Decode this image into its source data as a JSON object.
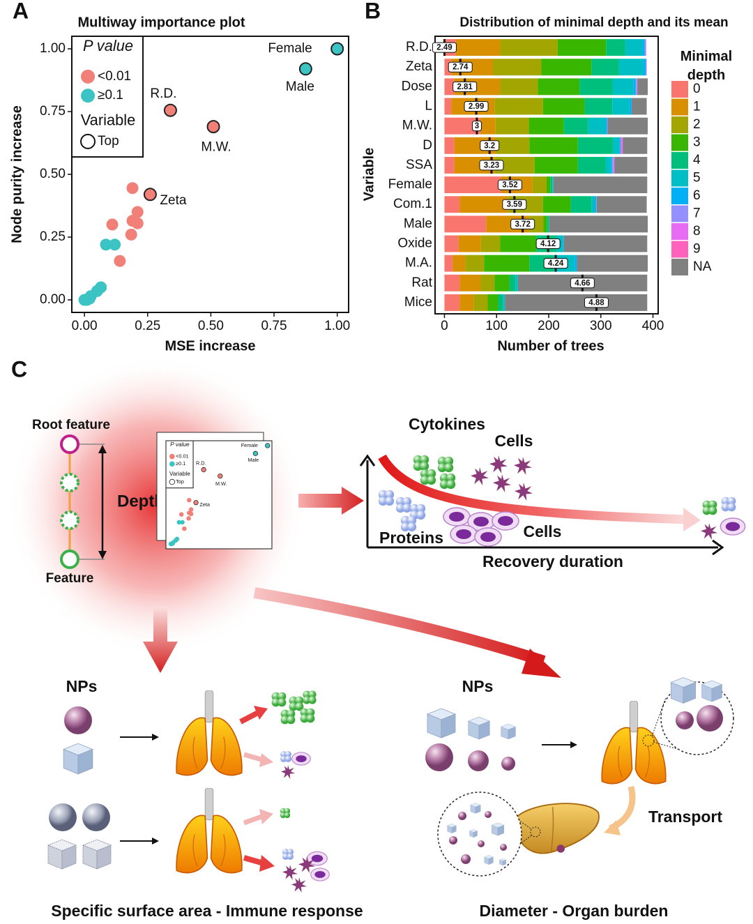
{
  "panel_labels": [
    "A",
    "B",
    "C"
  ],
  "chart_data": [
    {
      "type": "scatter",
      "title": "Multiway importance plot",
      "xlabel": "MSE increase",
      "ylabel": "Node purity increase",
      "xlim": [
        -0.05,
        1.045
      ],
      "ylim": [
        -0.05,
        1.05
      ],
      "xticks": [
        {
          "value": 0,
          "label": "0.00"
        },
        {
          "value": 0.25,
          "label": "0.25"
        },
        {
          "value": 0.5,
          "label": "0.50"
        },
        {
          "value": 0.75,
          "label": "0.75"
        },
        {
          "value": 1,
          "label": "1.00"
        }
      ],
      "yticks": [
        {
          "value": 0,
          "label": "0.00"
        },
        {
          "value": 0.25,
          "label": "0.25"
        },
        {
          "value": 0.5,
          "label": "0.50"
        },
        {
          "value": 0.75,
          "label": "0.75"
        },
        {
          "value": 1,
          "label": "1.00"
        }
      ],
      "legend_title": "P value",
      "legend_position": "upper left",
      "size_legend": {
        "title": "Variable",
        "label": "Top"
      },
      "series": [
        {
          "name": "<0.01",
          "color": "#f08078",
          "x": [
            0.34,
            0.51,
            0.26,
            0.19,
            0.11,
            0.19,
            0.21,
            0.21,
            0.185,
            0.14
          ],
          "values": [
            0.755,
            0.69,
            0.42,
            0.445,
            0.3,
            0.315,
            0.35,
            0.305,
            0.26,
            0.155
          ],
          "labels": [
            "R.D.",
            "M.W.",
            "Zeta",
            null,
            null,
            null,
            null,
            null,
            null,
            null
          ]
        },
        {
          "name": "≥0.1",
          "color": "#3cc4c4",
          "x": [
            1.0,
            0.875,
            0.01,
            0.025,
            0.05,
            0.065,
            0.085,
            0.12,
            0.0,
            0.02
          ],
          "values": [
            1.0,
            0.92,
            0.0,
            0.015,
            0.035,
            0.05,
            0.22,
            0.22,
            0.0,
            0.005
          ],
          "labels": [
            "Female",
            "Male",
            null,
            null,
            null,
            null,
            null,
            null,
            null,
            null
          ]
        }
      ]
    },
    {
      "type": "stacked_bar",
      "orientation": "horizontal",
      "title": "Distribution of minimal depth and its mean",
      "xlabel": "Number of trees",
      "ylabel": "Variable",
      "legend_title": "Minimal depth",
      "legend_position": "right",
      "categories": [
        "R.D.",
        "Zeta",
        "Dose",
        "L",
        "M.W.",
        "D",
        "SSA",
        "Female",
        "Com.1",
        "Male",
        "Oxide",
        "M.A.",
        "Rat",
        "Mice"
      ],
      "xlim": [
        -18,
        410
      ],
      "xticks": [
        0,
        100,
        200,
        300,
        400
      ],
      "means": [
        2.49,
        2.74,
        2.81,
        2.99,
        3,
        3.2,
        3.23,
        3.52,
        3.59,
        3.72,
        4.12,
        4.24,
        4.66,
        4.88
      ],
      "series": [
        {
          "name": "0",
          "color": "#f8766d",
          "values": [
            22,
            13,
            19,
            13,
            69,
            19,
            19,
            109,
            29,
            80,
            27,
            16,
            29,
            29
          ]
        },
        {
          "name": "1",
          "color": "#d89000",
          "values": [
            85,
            80,
            88,
            83,
            29,
            80,
            77,
            60,
            93,
            83,
            43,
            24,
            40,
            27
          ]
        },
        {
          "name": "2",
          "color": "#a3a500",
          "values": [
            110,
            93,
            72,
            93,
            64,
            64,
            77,
            27,
            67,
            27,
            37,
            36,
            27,
            27
          ]
        },
        {
          "name": "3",
          "color": "#39b600",
          "values": [
            93,
            96,
            80,
            80,
            67,
            93,
            83,
            7,
            53,
            7,
            69,
            87,
            29,
            20
          ]
        },
        {
          "name": "4",
          "color": "#00bf7d",
          "values": [
            37,
            53,
            64,
            53,
            47,
            67,
            53,
            4,
            40,
            3,
            40,
            47,
            11,
            9
          ]
        },
        {
          "name": "5",
          "color": "#00bfc4",
          "values": [
            33,
            47,
            40,
            33,
            33,
            13,
            11,
            2,
            7,
            1,
            11,
            40,
            5,
            4
          ]
        },
        {
          "name": "6",
          "color": "#00b0f6",
          "values": [
            4,
            4,
            4,
            4,
            3,
            2,
            2,
            0,
            2,
            0,
            2,
            4,
            0,
            0
          ]
        },
        {
          "name": "7",
          "color": "#9590ff",
          "values": [
            2,
            2,
            2,
            0,
            1,
            0,
            2,
            0,
            1,
            0,
            0,
            0,
            0,
            0
          ]
        },
        {
          "name": "8",
          "color": "#e76bf3",
          "values": [
            1,
            0,
            1,
            0,
            0,
            4,
            2,
            0,
            0,
            0,
            0,
            0,
            0,
            0
          ]
        },
        {
          "name": "9",
          "color": "#ff62bc",
          "values": [
            0,
            0,
            0,
            0,
            0,
            0,
            0,
            0,
            0,
            0,
            0,
            0,
            0,
            0
          ]
        },
        {
          "name": "NA",
          "color": "#808080",
          "values": [
            0,
            0,
            20,
            29,
            77,
            47,
            63,
            180,
            96,
            189,
            160,
            136,
            248,
            273
          ]
        }
      ]
    }
  ],
  "diagram": {
    "root_feature": "Root feature",
    "depth": "Depth +",
    "feature": "Feature",
    "cytokines": "Cytokines",
    "cells_top": "Cells",
    "proteins": "Proteins",
    "cells_bottom": "Cells",
    "recovery_duration": "Recovery duration",
    "nps_left": "NPs",
    "nps_right": "NPs",
    "transport": "Transport",
    "caption_left": "Specific surface area - Immune response",
    "caption_right": "Diameter - Organ burden"
  }
}
